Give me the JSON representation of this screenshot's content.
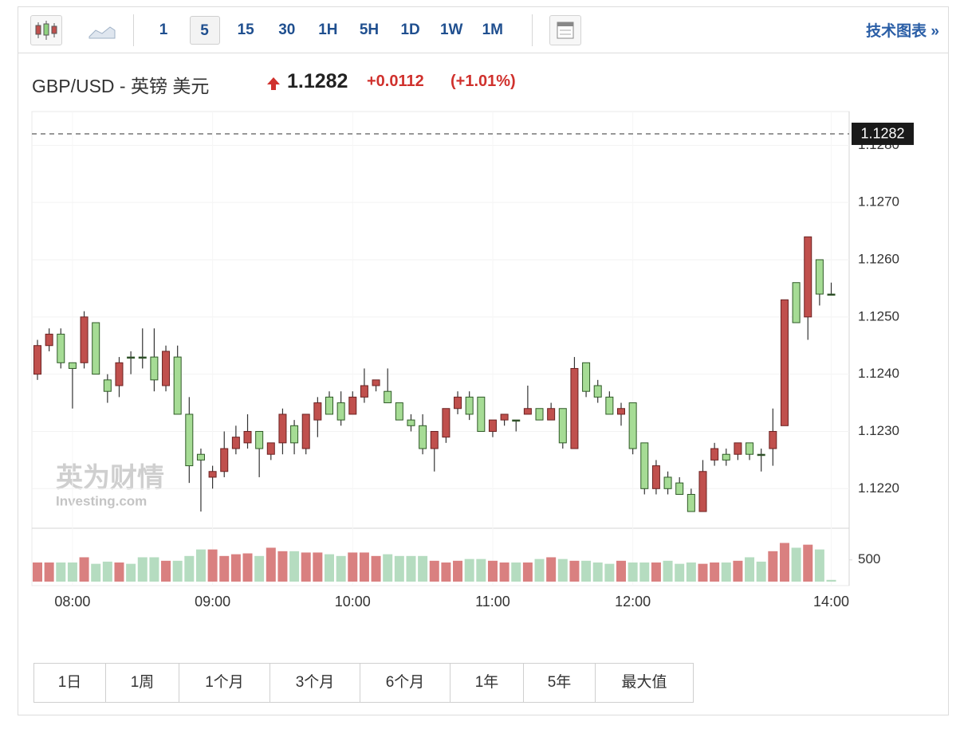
{
  "toolbar": {
    "intervals": [
      "1",
      "5",
      "15",
      "30",
      "1H",
      "5H",
      "1D",
      "1W",
      "1M"
    ],
    "selected_interval_index": 1,
    "link": "技术图表 »"
  },
  "quote": {
    "name": "GBP/USD - 英镑 美元",
    "price": "1.1282",
    "change": "+0.0112",
    "change_pct": "(+1.01%)"
  },
  "watermark": [
    "英为财情",
    "Investing.com"
  ],
  "chart_data": {
    "type": "candlestick",
    "categories": [
      null,
      null,
      null,
      "08:00",
      null,
      null,
      null,
      null,
      null,
      null,
      null,
      null,
      null,
      null,
      null,
      "09:00",
      null,
      null,
      null,
      null,
      null,
      null,
      null,
      null,
      null,
      null,
      null,
      "10:00",
      null,
      null,
      null,
      null,
      null,
      null,
      null,
      null,
      null,
      null,
      null,
      "11:00",
      null,
      null,
      null,
      null,
      null,
      null,
      null,
      null,
      null,
      null,
      null,
      "12:00",
      null,
      null,
      null,
      null,
      null,
      null,
      null,
      null,
      null,
      null,
      null,
      null,
      null,
      null,
      null,
      null,
      "14:00"
    ],
    "open": [
      1.124,
      1.1245,
      1.1247,
      1.1242,
      1.1242,
      1.1249,
      1.1239,
      1.1238,
      1.1243,
      1.1243,
      1.1243,
      1.1238,
      1.1243,
      1.1233,
      1.1226,
      1.1222,
      1.1223,
      1.1227,
      1.1228,
      1.123,
      1.1226,
      1.1228,
      1.1231,
      1.1227,
      1.1232,
      1.1236,
      1.1235,
      1.1233,
      1.1236,
      1.1238,
      1.1237,
      1.1235,
      1.1232,
      1.1231,
      1.1227,
      1.1229,
      1.1234,
      1.1236,
      1.1236,
      1.123,
      1.1232,
      1.1232,
      1.1233,
      1.1234,
      1.1232,
      1.1234,
      1.1227,
      1.1242,
      1.1238,
      1.1236,
      1.1233,
      1.1235,
      1.1228,
      1.122,
      1.1222,
      1.1221,
      1.1219,
      1.1216,
      1.1225,
      1.1226,
      1.1226,
      1.1228,
      1.1226,
      1.1227,
      1.1231,
      1.1256,
      1.125,
      1.126,
      1.1254
    ],
    "high": [
      1.1246,
      1.1248,
      1.1248,
      1.1242,
      1.1251,
      1.1249,
      1.124,
      1.1243,
      1.1244,
      1.1248,
      1.1248,
      1.1245,
      1.1245,
      1.1236,
      1.1227,
      1.1224,
      1.123,
      1.1231,
      1.1233,
      1.123,
      1.1228,
      1.1234,
      1.1232,
      1.1233,
      1.1236,
      1.1237,
      1.1237,
      1.1237,
      1.1241,
      1.1239,
      1.1241,
      1.1235,
      1.1233,
      1.1233,
      1.123,
      1.1234,
      1.1237,
      1.1237,
      1.1236,
      1.1232,
      1.1233,
      1.1232,
      1.1238,
      1.1234,
      1.1235,
      1.1234,
      1.1243,
      1.1242,
      1.1239,
      1.1237,
      1.1235,
      1.1235,
      1.1228,
      1.1225,
      1.1223,
      1.1222,
      1.122,
      1.1225,
      1.1228,
      1.1227,
      1.1228,
      1.1228,
      1.1227,
      1.1234,
      1.1253,
      1.1256,
      1.1264,
      1.126,
      1.1256
    ],
    "low": [
      1.1239,
      1.1244,
      1.1241,
      1.1234,
      1.1241,
      1.124,
      1.1235,
      1.1236,
      1.124,
      1.1241,
      1.1237,
      1.1237,
      1.1233,
      1.1221,
      1.1216,
      1.122,
      1.1222,
      1.1226,
      1.1227,
      1.1222,
      1.1225,
      1.1226,
      1.1226,
      1.1226,
      1.1229,
      1.1233,
      1.1231,
      1.1233,
      1.1235,
      1.1237,
      1.1235,
      1.1232,
      1.123,
      1.1226,
      1.1223,
      1.1228,
      1.1233,
      1.1232,
      1.123,
      1.1229,
      1.1231,
      1.123,
      1.1233,
      1.1232,
      1.1232,
      1.1227,
      1.1227,
      1.1236,
      1.1235,
      1.1233,
      1.1231,
      1.1226,
      1.1219,
      1.1219,
      1.1219,
      1.1219,
      1.1216,
      1.1216,
      1.1224,
      1.1224,
      1.1225,
      1.1225,
      1.1223,
      1.1224,
      1.1231,
      1.1249,
      1.1246,
      1.1252,
      1.1254
    ],
    "close": [
      1.1245,
      1.1247,
      1.1242,
      1.1241,
      1.125,
      1.124,
      1.1237,
      1.1242,
      1.1243,
      1.1243,
      1.1239,
      1.1244,
      1.1233,
      1.1224,
      1.1225,
      1.1223,
      1.1227,
      1.1229,
      1.123,
      1.1227,
      1.1228,
      1.1233,
      1.1228,
      1.1233,
      1.1235,
      1.1233,
      1.1232,
      1.1236,
      1.1238,
      1.1239,
      1.1235,
      1.1232,
      1.1231,
      1.1227,
      1.123,
      1.1234,
      1.1236,
      1.1233,
      1.123,
      1.1232,
      1.1233,
      1.1232,
      1.1234,
      1.1232,
      1.1234,
      1.1228,
      1.1241,
      1.1237,
      1.1236,
      1.1233,
      1.1234,
      1.1227,
      1.122,
      1.1224,
      1.122,
      1.1219,
      1.1216,
      1.1223,
      1.1227,
      1.1225,
      1.1228,
      1.1226,
      1.1226,
      1.123,
      1.1253,
      1.1249,
      1.1264,
      1.1254,
      1.1254
    ],
    "volume": [
      440,
      440,
      440,
      440,
      560,
      410,
      460,
      440,
      410,
      560,
      560,
      480,
      480,
      590,
      740,
      740,
      590,
      630,
      650,
      590,
      780,
      700,
      700,
      670,
      670,
      630,
      590,
      670,
      670,
      590,
      630,
      590,
      590,
      590,
      480,
      440,
      480,
      520,
      520,
      480,
      440,
      440,
      440,
      520,
      560,
      520,
      480,
      480,
      440,
      410,
      480,
      440,
      440,
      440,
      480,
      410,
      440,
      410,
      440,
      440,
      480,
      560,
      460,
      700,
      890,
      780,
      850,
      740,
      40
    ],
    "ylim": [
      1.12135,
      1.12845
    ],
    "yticks": [
      {
        "value": 1.122,
        "label": "1.1220"
      },
      {
        "value": 1.123,
        "label": "1.1230"
      },
      {
        "value": 1.124,
        "label": "1.1240"
      },
      {
        "value": 1.125,
        "label": "1.1250"
      },
      {
        "value": 1.126,
        "label": "1.1260"
      },
      {
        "value": 1.127,
        "label": "1.1270"
      },
      {
        "value": 1.128,
        "label": "1.1280"
      }
    ],
    "y2lim": [
      0,
      1100
    ],
    "y2ticks": [
      500
    ],
    "last_price": 1.1282,
    "grid": true,
    "up_color": "#c0504d",
    "down_color": "#a6dc95",
    "volume_up_color": "#d98080",
    "volume_down_color": "#b5dcc0"
  },
  "range_buttons": [
    "1日",
    "1周",
    "1个月",
    "3个月",
    "6个月",
    "1年",
    "5年",
    "最大值"
  ]
}
